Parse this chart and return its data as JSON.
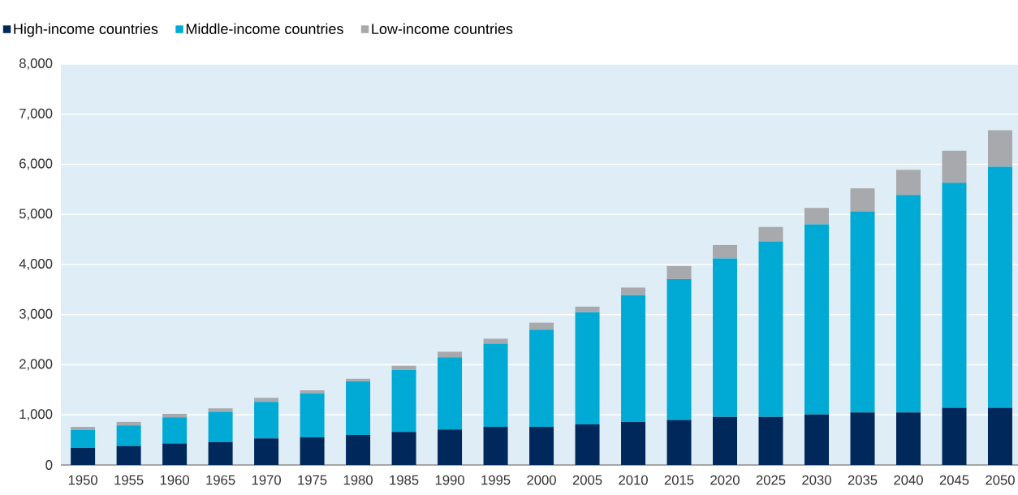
{
  "chart_data": {
    "type": "bar",
    "stacked": true,
    "categories": [
      "1950",
      "1955",
      "1960",
      "1965",
      "1970",
      "1975",
      "1980",
      "1985",
      "1990",
      "1995",
      "2000",
      "2005",
      "2010",
      "2015",
      "2020",
      "2025",
      "2030",
      "2035",
      "2040",
      "2045",
      "2050"
    ],
    "series": [
      {
        "name": "High-income countries",
        "color": "#00285a",
        "values": [
          340,
          380,
          430,
          460,
          530,
          550,
          600,
          660,
          710,
          760,
          760,
          810,
          860,
          900,
          960,
          960,
          1010,
          1050,
          1050,
          1140,
          1140
        ]
      },
      {
        "name": "Middle-income countries",
        "color": "#00aad4",
        "values": [
          360,
          410,
          520,
          600,
          730,
          880,
          1070,
          1240,
          1440,
          1660,
          1940,
          2240,
          2530,
          2810,
          3160,
          3500,
          3790,
          4010,
          4340,
          4490,
          4810
        ]
      },
      {
        "name": "Low-income countries",
        "color": "#a7a9ac",
        "values": [
          60,
          70,
          70,
          70,
          80,
          60,
          50,
          80,
          110,
          100,
          140,
          110,
          150,
          260,
          270,
          290,
          330,
          460,
          500,
          640,
          730
        ]
      }
    ],
    "ylim": [
      0,
      8000
    ],
    "yticks": [
      0,
      {
        "value": 1000,
        "label": "1,000"
      },
      {
        "value": 2000,
        "label": "2,000"
      },
      {
        "value": 3000,
        "label": "3,000"
      },
      {
        "value": 4000,
        "label": "4,000"
      },
      {
        "value": 5000,
        "label": "5,000"
      },
      {
        "value": 6000,
        "label": "6,000"
      },
      {
        "value": 7000,
        "label": "7,000"
      },
      {
        "value": 8000,
        "label": "8,000"
      }
    ],
    "grid": "y",
    "legend": "top left"
  }
}
